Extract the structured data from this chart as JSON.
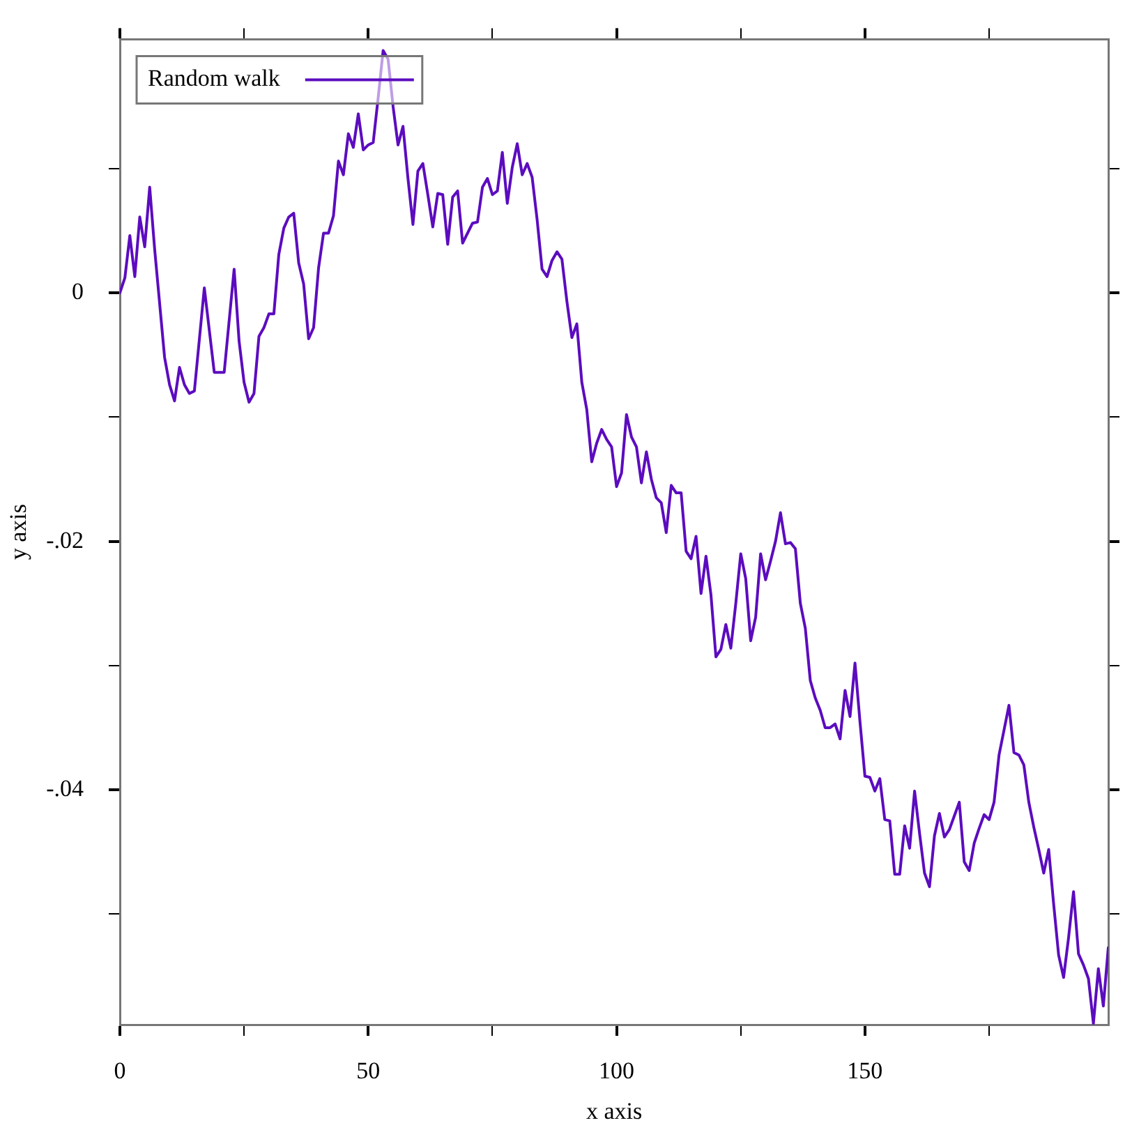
{
  "chart_data": {
    "type": "line",
    "xlabel": "x axis",
    "ylabel": "y axis",
    "legend": "top left",
    "grid": false,
    "marker": "none",
    "line_style": "solid",
    "xlim": [
      0,
      199
    ],
    "ylim": [
      -0.0589,
      0.0204
    ],
    "xticks": [
      0,
      {
        "value": 25,
        "label": null
      },
      50,
      {
        "value": 75,
        "label": null
      },
      100,
      {
        "value": 125,
        "label": null
      },
      150,
      {
        "value": 175,
        "label": null
      }
    ],
    "yticks": [
      {
        "value": -0.05,
        "label": null
      },
      {
        "value": -0.04,
        "label": "-.04"
      },
      {
        "value": -0.03,
        "label": null
      },
      {
        "value": -0.02,
        "label": "-.02"
      },
      {
        "value": -0.01,
        "label": null
      },
      {
        "value": 0,
        "label": "0"
      },
      {
        "value": 0.01,
        "label": null
      }
    ],
    "series": [
      {
        "name": "Random walk",
        "color": "#5c0cbf",
        "x": [
          0,
          1,
          2,
          3,
          4,
          5,
          6,
          7,
          9,
          10,
          11,
          12,
          13,
          14,
          15,
          17,
          19,
          21,
          23,
          24,
          25,
          26,
          27,
          28,
          29,
          30,
          31,
          32,
          33,
          34,
          35,
          36,
          37,
          38,
          39,
          40,
          41,
          42,
          43,
          44,
          45,
          46,
          47,
          48,
          49,
          50,
          51,
          52,
          53,
          54,
          55,
          56,
          57,
          58,
          59,
          60,
          61,
          62,
          63,
          64,
          65,
          66,
          67,
          68,
          69,
          71,
          72,
          73,
          74,
          75,
          76,
          77,
          78,
          79,
          80,
          81,
          82,
          83,
          84,
          85,
          86,
          87,
          88,
          89,
          90,
          91,
          92,
          93,
          94,
          95,
          96,
          97,
          98,
          99,
          100,
          101,
          102,
          103,
          104,
          105,
          106,
          107,
          108,
          109,
          110,
          111,
          112,
          113,
          114,
          115,
          116,
          117,
          118,
          119,
          120,
          121,
          122,
          123,
          124,
          125,
          126,
          127,
          128,
          129,
          130,
          131,
          132,
          133,
          134,
          135,
          136,
          137,
          138,
          139,
          140,
          141,
          142,
          143,
          144,
          145,
          146,
          147,
          148,
          149,
          150,
          151,
          152,
          153,
          154,
          155,
          156,
          157,
          158,
          159,
          160,
          161,
          162,
          163,
          164,
          165,
          166,
          167,
          168,
          169,
          170,
          171,
          172,
          173,
          174,
          175,
          176,
          177,
          178,
          179,
          180,
          181,
          182,
          183,
          184,
          185,
          186,
          187,
          188,
          189,
          190,
          191,
          192,
          193,
          194,
          195,
          196,
          197,
          198,
          199
        ],
        "values": [
          0,
          0.0012,
          0.0046,
          0.0013,
          0.0061,
          0.0037,
          0.0085,
          0.0035,
          -0.0052,
          -0.0074,
          -0.0087,
          -0.006,
          -0.0074,
          -0.0081,
          -0.0079,
          0.0004,
          -0.0064,
          -0.0064,
          0.0019,
          -0.0039,
          -0.0072,
          -0.0088,
          -0.0081,
          -0.0035,
          -0.0028,
          -0.0017,
          -0.0017,
          0.0031,
          0.0052,
          0.0061,
          0.0064,
          0.0024,
          0.0007,
          -0.0037,
          -0.0028,
          0.002,
          0.0048,
          0.0048,
          0.0062,
          0.0106,
          0.0095,
          0.0128,
          0.0117,
          0.0144,
          0.0115,
          0.0119,
          0.0121,
          0.0157,
          0.0195,
          0.0188,
          0.015,
          0.0119,
          0.0134,
          0.0092,
          0.0055,
          0.0098,
          0.0104,
          0.0079,
          0.0053,
          0.008,
          0.0079,
          0.0039,
          0.0077,
          0.0082,
          0.004,
          0.0056,
          0.0057,
          0.0085,
          0.0092,
          0.0079,
          0.0082,
          0.0113,
          0.0072,
          0.0101,
          0.012,
          0.0095,
          0.0104,
          0.0093,
          0.0059,
          0.0019,
          0.0013,
          0.0026,
          0.0033,
          0.0027,
          -0.0007,
          -0.0036,
          -0.0025,
          -0.0072,
          -0.0094,
          -0.0136,
          -0.0121,
          -0.011,
          -0.0118,
          -0.0124,
          -0.0156,
          -0.0145,
          -0.0098,
          -0.0116,
          -0.0124,
          -0.0153,
          -0.0128,
          -0.015,
          -0.0165,
          -0.0169,
          -0.0193,
          -0.0155,
          -0.0161,
          -0.0161,
          -0.0208,
          -0.0214,
          -0.0196,
          -0.0242,
          -0.0212,
          -0.0243,
          -0.0293,
          -0.0287,
          -0.0267,
          -0.0286,
          -0.025,
          -0.021,
          -0.023,
          -0.028,
          -0.0261,
          -0.021,
          -0.0231,
          -0.0216,
          -0.02,
          -0.0177,
          -0.0202,
          -0.0201,
          -0.0206,
          -0.025,
          -0.027,
          -0.0312,
          -0.0326,
          -0.0336,
          -0.035,
          -0.035,
          -0.0347,
          -0.0359,
          -0.032,
          -0.0341,
          -0.0298,
          -0.0345,
          -0.0389,
          -0.039,
          -0.0401,
          -0.0391,
          -0.0424,
          -0.0425,
          -0.0468,
          -0.0468,
          -0.0429,
          -0.0447,
          -0.0401,
          -0.0435,
          -0.0467,
          -0.0478,
          -0.0437,
          -0.0419,
          -0.0438,
          -0.0432,
          -0.0421,
          -0.041,
          -0.0458,
          -0.0465,
          -0.0443,
          -0.0431,
          -0.042,
          -0.0424,
          -0.041,
          -0.0372,
          -0.0352,
          -0.0332,
          -0.037,
          -0.0372,
          -0.038,
          -0.041,
          -0.043,
          -0.0448,
          -0.0467,
          -0.0448,
          -0.0492,
          -0.0533,
          -0.0551,
          -0.0519,
          -0.0482,
          -0.0532,
          -0.0541,
          -0.0552,
          -0.0588,
          -0.0544,
          -0.0574,
          -0.0527
        ]
      }
    ]
  }
}
